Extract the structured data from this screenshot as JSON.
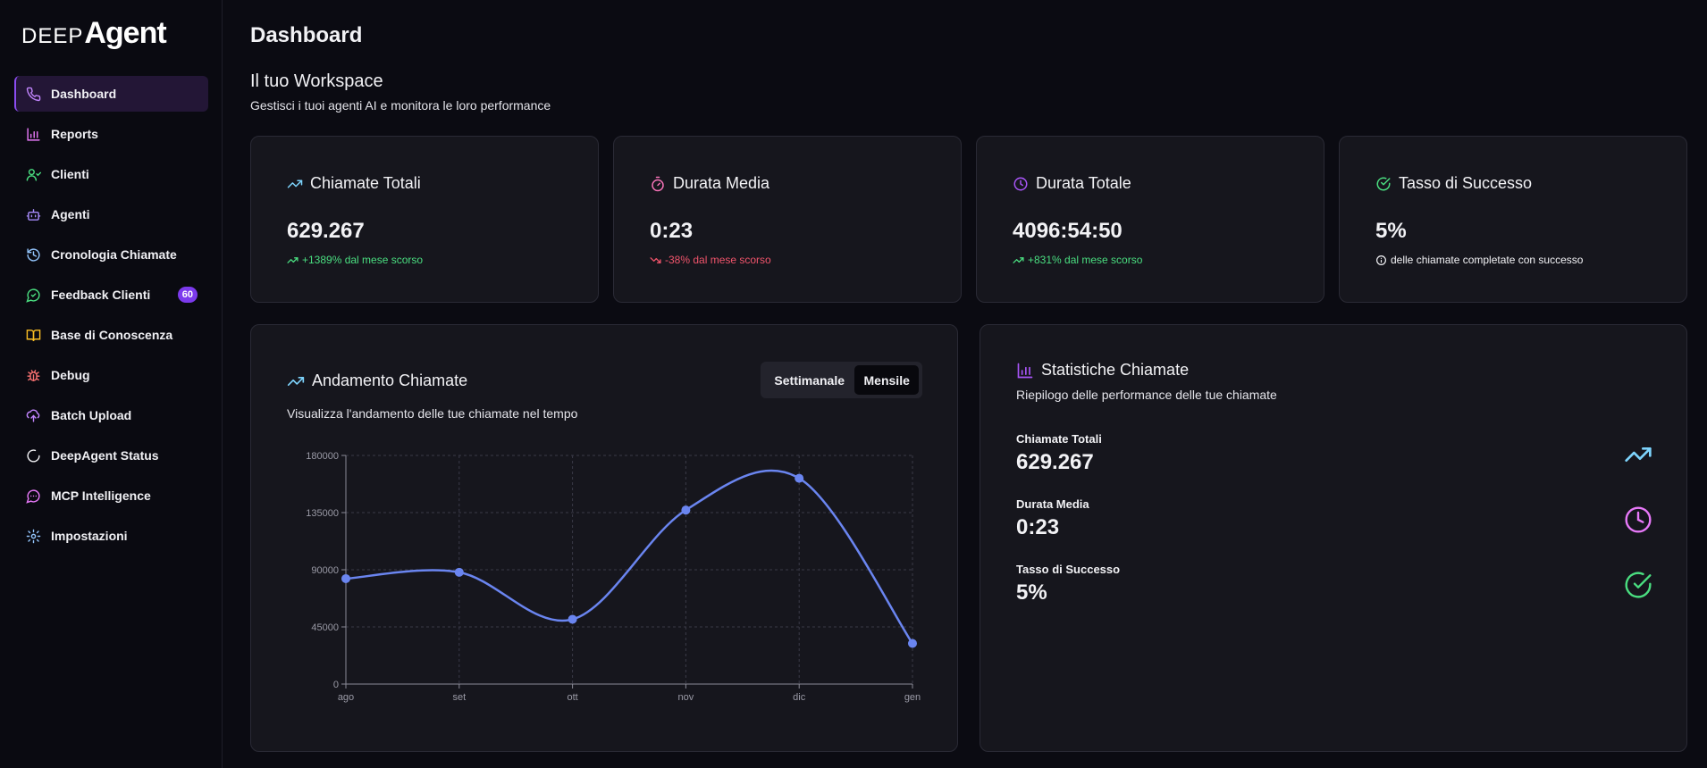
{
  "brand": {
    "logo_part1": "DEEP",
    "logo_part2": "Agent"
  },
  "sidebar": {
    "items": [
      {
        "label": "Dashboard",
        "icon": "phone-icon",
        "active": true
      },
      {
        "label": "Reports",
        "icon": "bar-chart-icon"
      },
      {
        "label": "Clienti",
        "icon": "users-icon"
      },
      {
        "label": "Agenti",
        "icon": "bot-icon"
      },
      {
        "label": "Cronologia Chiamate",
        "icon": "history-icon"
      },
      {
        "label": "Feedback Clienti",
        "icon": "message-icon",
        "badge": "60"
      },
      {
        "label": "Base di Conoscenza",
        "icon": "book-icon"
      },
      {
        "label": "Debug",
        "icon": "bug-icon"
      },
      {
        "label": "Batch Upload",
        "icon": "cloud-upload-icon"
      },
      {
        "label": "DeepAgent Status",
        "icon": "spinner-icon"
      },
      {
        "label": "MCP Intelligence",
        "icon": "chat-bubble-icon"
      },
      {
        "label": "Impostazioni",
        "icon": "gear-icon"
      }
    ]
  },
  "header": {
    "title": "Dashboard",
    "workspace_title": "Il tuo Workspace",
    "workspace_subtitle": "Gestisci i tuoi agenti AI e monitora le loro performance"
  },
  "stat_cards": [
    {
      "title": "Chiamate Totali",
      "value": "629.267",
      "note": "+1389% dal mese scorso",
      "trend": "up"
    },
    {
      "title": "Durata Media",
      "value": "0:23",
      "note": "-38% dal mese scorso",
      "trend": "down"
    },
    {
      "title": "Durata Totale",
      "value": "4096:54:50",
      "note": "+831% dal mese scorso",
      "trend": "up"
    },
    {
      "title": "Tasso di Successo",
      "value": "5%",
      "note": "delle chiamate completate con successo",
      "trend": "info"
    }
  ],
  "chart_card": {
    "title": "Andamento Chiamate",
    "subtitle": "Visualizza l'andamento delle tue chiamate nel tempo",
    "toggle": {
      "weekly": "Settimanale",
      "monthly": "Mensile",
      "selected": "Mensile"
    }
  },
  "chart_data": {
    "type": "line",
    "categories": [
      "ago",
      "set",
      "ott",
      "nov",
      "dic",
      "gen"
    ],
    "values": [
      83000,
      88000,
      51000,
      137000,
      162000,
      32000
    ],
    "ylim": [
      0,
      180000
    ],
    "yticks": [
      "0",
      "45000",
      "90000",
      "135000",
      "180000"
    ],
    "grid": true,
    "color": "#6a85f0"
  },
  "stats_card": {
    "title": "Statistiche Chiamate",
    "subtitle": "Riepilogo delle performance delle tue chiamate",
    "rows": [
      {
        "label": "Chiamate Totali",
        "value": "629.267",
        "icon": "trending-up-icon"
      },
      {
        "label": "Durata Media",
        "value": "0:23",
        "icon": "clock-icon"
      },
      {
        "label": "Tasso di Successo",
        "value": "5%",
        "icon": "check-circle-icon"
      }
    ]
  },
  "colors": {
    "accent": "#8b4cf0",
    "badge": "#7c3aed",
    "positive": "#4ade80",
    "negative": "#f0546b",
    "line": "#6a85f0"
  }
}
